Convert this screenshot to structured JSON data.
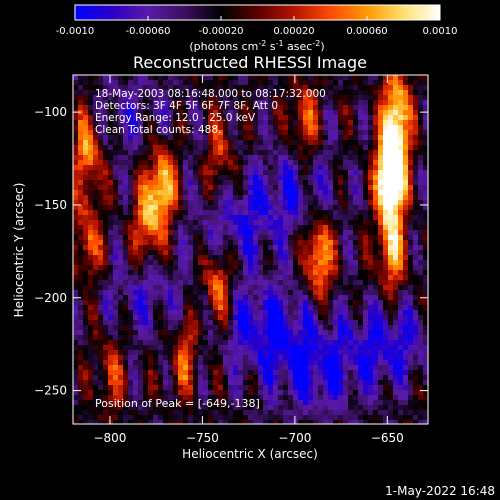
{
  "colorbar": {
    "min": -0.001,
    "max": 0.001,
    "ticks": [
      "-0.0010",
      "-0.00060",
      "-0.00020",
      "0.00020",
      "0.00060",
      "0.0010"
    ],
    "tick_values": [
      -0.001,
      -0.0006,
      -0.0002,
      0.0002,
      0.0006,
      0.001
    ],
    "units_label_parts": [
      "(photons cm",
      "-2",
      " s",
      "-1",
      " asec",
      "-2",
      ")"
    ],
    "colormap": [
      "#0000ff",
      "#2a00c8",
      "#5a1aa8",
      "#3a1060",
      "#000000",
      "#5a0000",
      "#b41400",
      "#ff4a00",
      "#ff9a00",
      "#ffe070",
      "#ffffff"
    ]
  },
  "chart_data": {
    "type": "heatmap",
    "title": "Reconstructed RHESSI Image",
    "xlabel": "Heliocentric X (arcsec)",
    "ylabel": "Heliocentric Y (arcsec)",
    "xlim": [
      -820,
      -628
    ],
    "ylim": [
      -268,
      -80
    ],
    "xticks": [
      -800,
      -750,
      -700,
      -650
    ],
    "yticks": [
      -100,
      -150,
      -200,
      -250
    ],
    "hotspots": [
      {
        "x": -645,
        "y": -100,
        "intensity": 1.0
      },
      {
        "x": -647,
        "y": -130,
        "intensity": 1.0
      },
      {
        "x": -649,
        "y": -138,
        "intensity": 1.0
      },
      {
        "x": -648,
        "y": -175,
        "intensity": 0.8
      },
      {
        "x": -772,
        "y": -140,
        "intensity": 0.95
      },
      {
        "x": -780,
        "y": -160,
        "intensity": 0.7
      },
      {
        "x": -812,
        "y": -120,
        "intensity": 0.8
      },
      {
        "x": -812,
        "y": -170,
        "intensity": 0.6
      },
      {
        "x": -742,
        "y": -195,
        "intensity": 0.75
      },
      {
        "x": -687,
        "y": -178,
        "intensity": 0.9
      },
      {
        "x": -695,
        "y": -105,
        "intensity": 0.55
      },
      {
        "x": -740,
        "y": -125,
        "intensity": 0.5
      },
      {
        "x": -760,
        "y": -230,
        "intensity": 0.55
      },
      {
        "x": -800,
        "y": -240,
        "intensity": 0.45
      }
    ],
    "coldspots": [
      {
        "x": -716,
        "y": -215,
        "intensity": 0.6
      },
      {
        "x": -690,
        "y": -240,
        "intensity": 0.55
      },
      {
        "x": -650,
        "y": -225,
        "intensity": 0.55
      },
      {
        "x": -730,
        "y": -160,
        "intensity": 0.45
      },
      {
        "x": -700,
        "y": -140,
        "intensity": 0.4
      },
      {
        "x": -780,
        "y": -200,
        "intensity": 0.35
      },
      {
        "x": -790,
        "y": -100,
        "intensity": 0.3
      }
    ],
    "annotations": [
      "18-May-2003 08:16:48.000 to 08:17:32.000",
      "Detectors: 3F 4F 5F 6F 7F 8F, Att 0",
      "Energy Range: 12.0 - 25.0 keV",
      "Clean    Total counts: 488."
    ],
    "peak_label": "Position of Peak = [-649,-138]",
    "peak": {
      "x": -649,
      "y": -138
    }
  },
  "footer": {
    "timestamp": "1-May-2022 16:48"
  }
}
